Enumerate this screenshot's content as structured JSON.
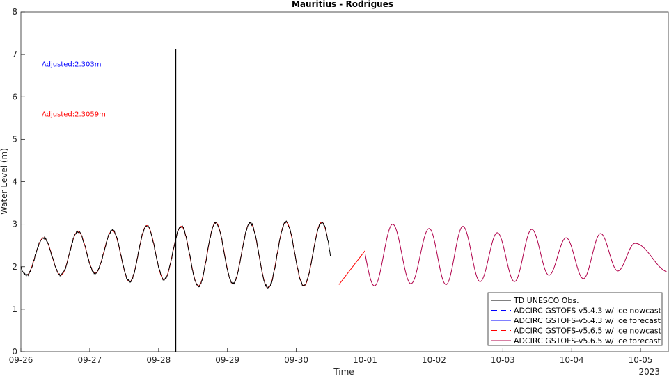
{
  "chart_data": {
    "type": "line",
    "title": "Mauritius - Rodrigues",
    "xlabel": "Time",
    "ylabel": "Water Level (m)",
    "year_label": "2023",
    "ylim": [
      0,
      8
    ],
    "y_ticks": [
      "0",
      "1",
      "2",
      "3",
      "4",
      "5",
      "6",
      "7",
      "8"
    ],
    "x_ticks": [
      "09-26",
      "09-27",
      "09-28",
      "09-29",
      "09-30",
      "10-01",
      "10-02",
      "10-03",
      "10-04",
      "10-05"
    ],
    "xlim_days": [
      0,
      9.38
    ],
    "nowcast_divider_day": 5,
    "annotations": [
      {
        "text": "Adjusted:2.303m",
        "color": "#0000ff",
        "y": 6.78
      },
      {
        "text": "Adjusted:2.3059m",
        "color": "#ff0000",
        "y": 5.6
      }
    ],
    "spike": {
      "x_day": 2.25,
      "y_top": 7.12
    },
    "obs_end_day": 4.58,
    "tide_peaks": [
      {
        "day": 0.33,
        "high": 2.68,
        "low": 1.8
      },
      {
        "day": 0.83,
        "high": 2.83,
        "low": 1.85
      },
      {
        "day": 1.33,
        "high": 2.85,
        "low": 1.65
      },
      {
        "day": 1.83,
        "high": 2.97,
        "low": 1.7
      },
      {
        "day": 2.33,
        "high": 2.95,
        "low": 1.55
      },
      {
        "day": 2.83,
        "high": 3.04,
        "low": 1.6
      },
      {
        "day": 3.33,
        "high": 3.03,
        "low": 1.5
      },
      {
        "day": 3.85,
        "high": 3.05,
        "low": 1.55
      },
      {
        "day": 4.37,
        "high": 3.05,
        "low": 1.52
      },
      {
        "day": 4.87,
        "high": 3.0,
        "low": 1.55
      },
      {
        "day": 5.4,
        "high": 3.0,
        "low": 1.6
      },
      {
        "day": 5.93,
        "high": 2.9,
        "low": 1.58
      },
      {
        "day": 6.42,
        "high": 2.95,
        "low": 1.65
      },
      {
        "day": 6.92,
        "high": 2.8,
        "low": 1.65
      },
      {
        "day": 7.42,
        "high": 2.88,
        "low": 1.8
      },
      {
        "day": 7.92,
        "high": 2.68,
        "low": 1.72
      },
      {
        "day": 8.42,
        "high": 2.78,
        "low": 1.9
      },
      {
        "day": 8.92,
        "high": 2.55,
        "low": 1.87
      }
    ],
    "series": [
      {
        "name": "TD UNESCO Obs.",
        "color": "#000000",
        "dash": "none"
      },
      {
        "name": "ADCIRC GSTOFS-v5.4.3 w/ ice nowcast",
        "color": "#0000ff",
        "dash": "8,5"
      },
      {
        "name": "ADCIRC GSTOFS-v5.4.3 w/ ice forecast",
        "color": "#0000ff",
        "dash": "none"
      },
      {
        "name": "ADCIRC GSTOFS-v5.6.5 w/ ice nowcast",
        "color": "#ff0000",
        "dash": "8,5"
      },
      {
        "name": "ADCIRC GSTOFS-v5.6.5 w/ ice forecast",
        "color": "#b0004a",
        "dash": "none"
      }
    ],
    "grid": false,
    "legend_position": "bottom-right"
  }
}
